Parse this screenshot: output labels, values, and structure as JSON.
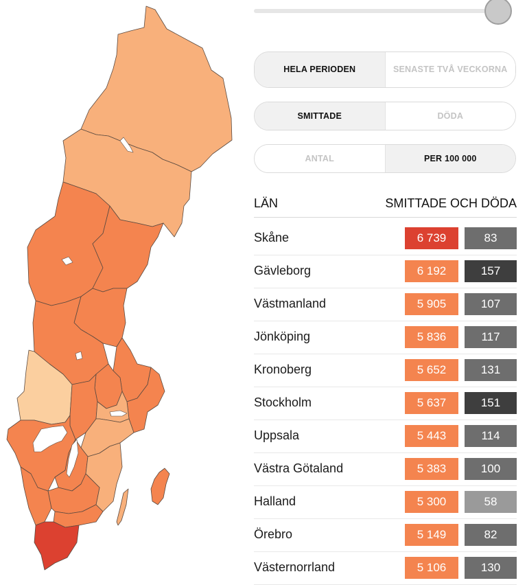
{
  "controls": {
    "period": {
      "options": [
        "HELA PERIODEN",
        "SENASTE TVÅ VECKORNA"
      ],
      "selected": "HELA PERIODEN"
    },
    "measure": {
      "options": [
        "SMITTADE",
        "DÖDA"
      ],
      "selected": "SMITTADE"
    },
    "unit": {
      "options": [
        "ANTAL",
        "PER 100 000"
      ],
      "selected": "PER 100 000"
    },
    "slider_position": 1.0
  },
  "table": {
    "col_lan": "LÄN",
    "col_values": "SMITTADE OCH DÖDA",
    "rows": [
      {
        "name": "Skåne",
        "cases": "6 739",
        "deaths": "83",
        "case_color": "#dc4130",
        "death_color": "#6e6e6e"
      },
      {
        "name": "Gävleborg",
        "cases": "6 192",
        "deaths": "157",
        "case_color": "#f4844f",
        "death_color": "#3e3e3e"
      },
      {
        "name": "Västmanland",
        "cases": "5 905",
        "deaths": "107",
        "case_color": "#f4844f",
        "death_color": "#6e6e6e"
      },
      {
        "name": "Jönköping",
        "cases": "5 836",
        "deaths": "117",
        "case_color": "#f4844f",
        "death_color": "#6e6e6e"
      },
      {
        "name": "Kronoberg",
        "cases": "5 652",
        "deaths": "131",
        "case_color": "#f4844f",
        "death_color": "#6e6e6e"
      },
      {
        "name": "Stockholm",
        "cases": "5 637",
        "deaths": "151",
        "case_color": "#f4844f",
        "death_color": "#3e3e3e"
      },
      {
        "name": "Uppsala",
        "cases": "5 443",
        "deaths": "114",
        "case_color": "#f4844f",
        "death_color": "#6e6e6e"
      },
      {
        "name": "Västra Götaland",
        "cases": "5 383",
        "deaths": "100",
        "case_color": "#f4844f",
        "death_color": "#6e6e6e"
      },
      {
        "name": "Halland",
        "cases": "5 300",
        "deaths": "58",
        "case_color": "#f4844f",
        "death_color": "#9a9a9a"
      },
      {
        "name": "Örebro",
        "cases": "5 149",
        "deaths": "82",
        "case_color": "#f4844f",
        "death_color": "#6e6e6e"
      },
      {
        "name": "Västernorrland",
        "cases": "5 106",
        "deaths": "130",
        "case_color": "#f4844f",
        "death_color": "#6e6e6e"
      }
    ]
  },
  "map": {
    "colors": {
      "dark": "#dc4130",
      "mid": "#f4844f",
      "light": "#f8b07b",
      "pale": "#fbcf9f"
    }
  }
}
